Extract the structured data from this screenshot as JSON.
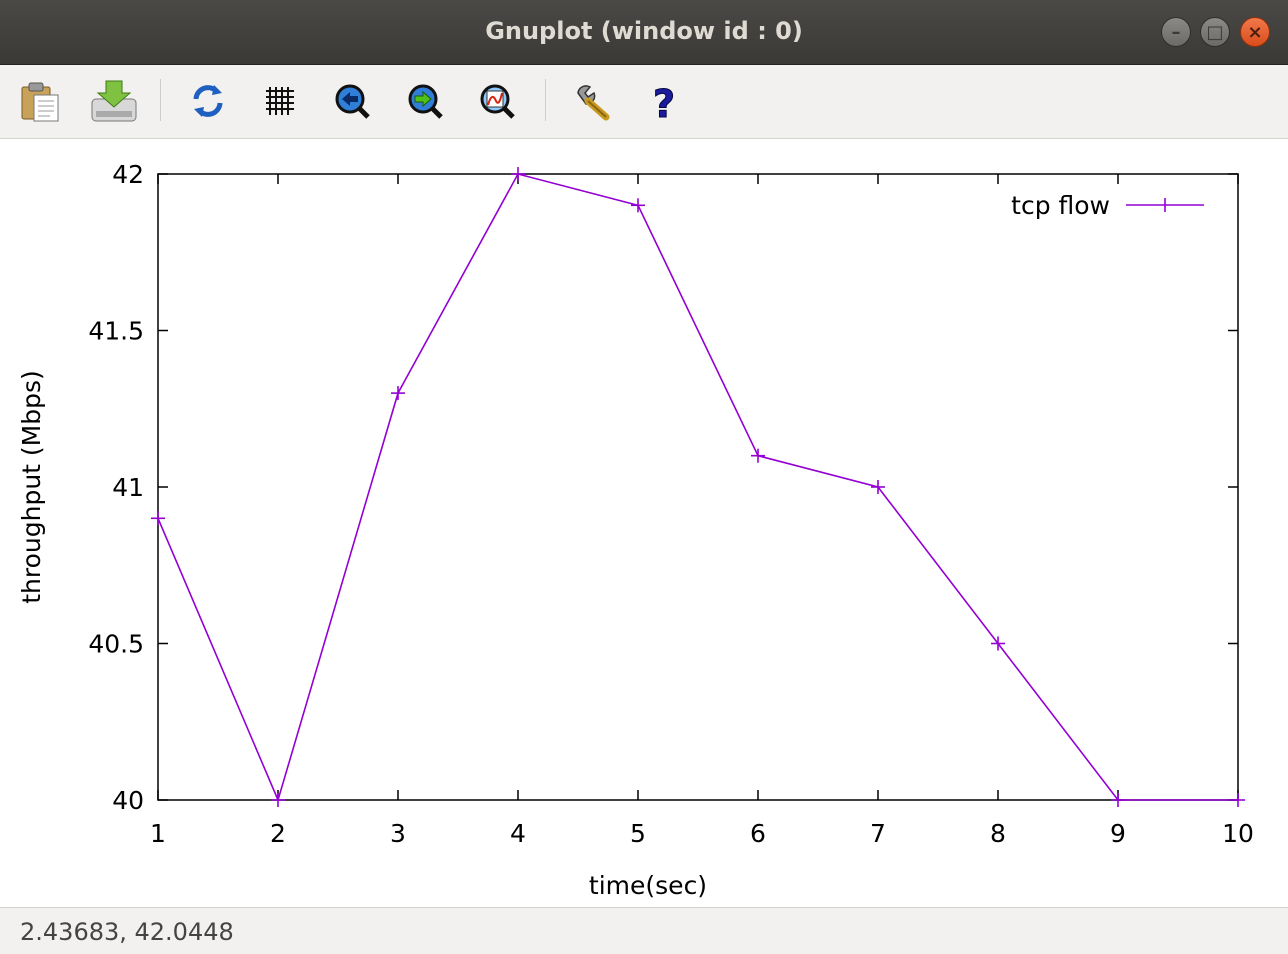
{
  "window": {
    "title": "Gnuplot (window id : 0)",
    "controls": {
      "minimize": "–",
      "maximize": "□",
      "close": "×"
    }
  },
  "toolbar": {
    "items": [
      {
        "icon": "clipboard-icon"
      },
      {
        "icon": "export-icon"
      },
      {
        "icon": "replot-icon"
      },
      {
        "icon": "grid-icon"
      },
      {
        "icon": "zoom-previous-icon"
      },
      {
        "icon": "zoom-next-icon"
      },
      {
        "icon": "autoscale-icon"
      },
      {
        "icon": "settings-icon"
      },
      {
        "icon": "help-icon"
      }
    ]
  },
  "status": {
    "coords": "2.43683,  42.0448"
  },
  "chart_data": {
    "type": "line",
    "xlabel": "time(sec)",
    "ylabel": "throughput (Mbps)",
    "xlim": [
      1,
      10
    ],
    "ylim": [
      40,
      42
    ],
    "xticks": [
      "1",
      "2",
      "3",
      "4",
      "5",
      "6",
      "7",
      "8",
      "9",
      "10"
    ],
    "yticks": [
      "40",
      "40.5",
      "41",
      "41.5",
      "42"
    ],
    "grid": false,
    "legend_position": "top-right",
    "series": [
      {
        "name": "tcp flow",
        "color": "#9400d3",
        "x": [
          1,
          2,
          3,
          4,
          5,
          6,
          7,
          8,
          9,
          10
        ],
        "y": [
          40.9,
          40.0,
          41.3,
          42.0,
          41.9,
          41.1,
          41.0,
          40.5,
          40.0,
          40.0
        ]
      }
    ]
  }
}
